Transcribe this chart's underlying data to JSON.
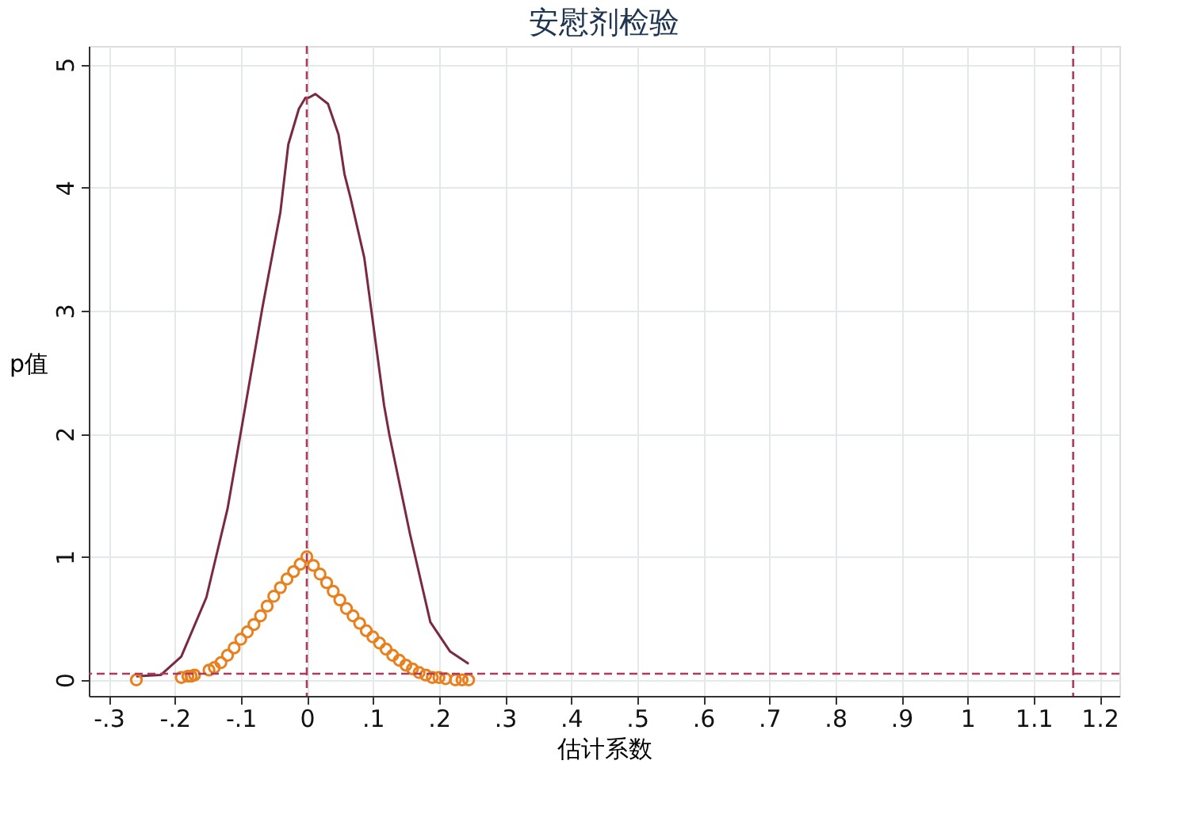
{
  "chart_data": {
    "type": "line",
    "title": "安慰剂检验",
    "xlabel": "估计系数",
    "ylabel": "p值",
    "xlim": [
      -0.33,
      1.23
    ],
    "ylim": [
      -0.13,
      5.15
    ],
    "xticks": [
      {
        "value": -0.3,
        "label": "-.3"
      },
      {
        "value": -0.2,
        "label": "-.2"
      },
      {
        "value": -0.1,
        "label": "-.1"
      },
      0,
      {
        "value": 0.1,
        "label": ".1"
      },
      {
        "value": 0.2,
        "label": ".2"
      },
      {
        "value": 0.3,
        "label": ".3"
      },
      {
        "value": 0.4,
        "label": ".4"
      },
      {
        "value": 0.5,
        "label": ".5"
      },
      {
        "value": 0.6,
        "label": ".6"
      },
      {
        "value": 0.7,
        "label": ".7"
      },
      {
        "value": 0.8,
        "label": ".8"
      },
      {
        "value": 0.9,
        "label": ".9"
      },
      1,
      1.1,
      1.2
    ],
    "yticks": [
      0,
      1,
      2,
      3,
      4,
      5
    ],
    "grid": true,
    "series": [
      {
        "type": "line",
        "color": "#7a2a40",
        "line_style": "solid",
        "marker": "none",
        "x": [
          -0.258,
          -0.221,
          -0.19,
          -0.152,
          -0.12,
          -0.097,
          -0.067,
          -0.04,
          -0.028,
          -0.012,
          -0.002,
          0.003,
          0.013,
          0.032,
          0.048,
          0.057,
          0.066,
          0.087,
          0.117,
          0.125,
          0.156,
          0.187,
          0.217,
          0.245
        ],
        "values": [
          0.03,
          0.04,
          0.19,
          0.67,
          1.39,
          2.1,
          3.03,
          3.8,
          4.35,
          4.64,
          4.73,
          4.73,
          4.76,
          4.68,
          4.43,
          4.11,
          3.92,
          3.43,
          2.23,
          1.99,
          1.19,
          0.47,
          0.23,
          0.13
        ]
      },
      {
        "type": "scatter",
        "color": "#e8801e",
        "marker": "circle",
        "x": [
          -0.258,
          -0.19,
          -0.18,
          -0.175,
          -0.17,
          -0.148,
          -0.14,
          -0.13,
          -0.12,
          -0.11,
          -0.1,
          -0.09,
          -0.08,
          -0.07,
          -0.06,
          -0.05,
          -0.04,
          -0.03,
          -0.02,
          -0.01,
          0,
          0.01,
          0.02,
          0.03,
          0.04,
          0.05,
          0.06,
          0.07,
          0.08,
          0.09,
          0.1,
          0.11,
          0.12,
          0.13,
          0.14,
          0.15,
          0.16,
          0.17,
          0.18,
          0.19,
          0.2,
          0.21,
          0.225,
          0.235,
          0.245
        ],
        "values": [
          0.0,
          0.02,
          0.03,
          0.03,
          0.04,
          0.08,
          0.1,
          0.14,
          0.2,
          0.26,
          0.33,
          0.39,
          0.45,
          0.52,
          0.6,
          0.68,
          0.75,
          0.82,
          0.88,
          0.94,
          1.0,
          0.93,
          0.86,
          0.79,
          0.72,
          0.65,
          0.58,
          0.52,
          0.46,
          0.4,
          0.35,
          0.3,
          0.25,
          0.2,
          0.16,
          0.12,
          0.09,
          0.06,
          0.04,
          0.02,
          0.02,
          0.01,
          0.0,
          0.0,
          0.0
        ]
      }
    ],
    "ref_lines": [
      {
        "axis": "x",
        "value": 0,
        "color": "#b03a5b",
        "line_style": "dashed"
      },
      {
        "axis": "x",
        "value": 1.16,
        "color": "#b03a5b",
        "line_style": "dashed"
      },
      {
        "axis": "y",
        "value": 0.05,
        "color": "#b03a5b",
        "line_style": "dashed"
      }
    ]
  }
}
